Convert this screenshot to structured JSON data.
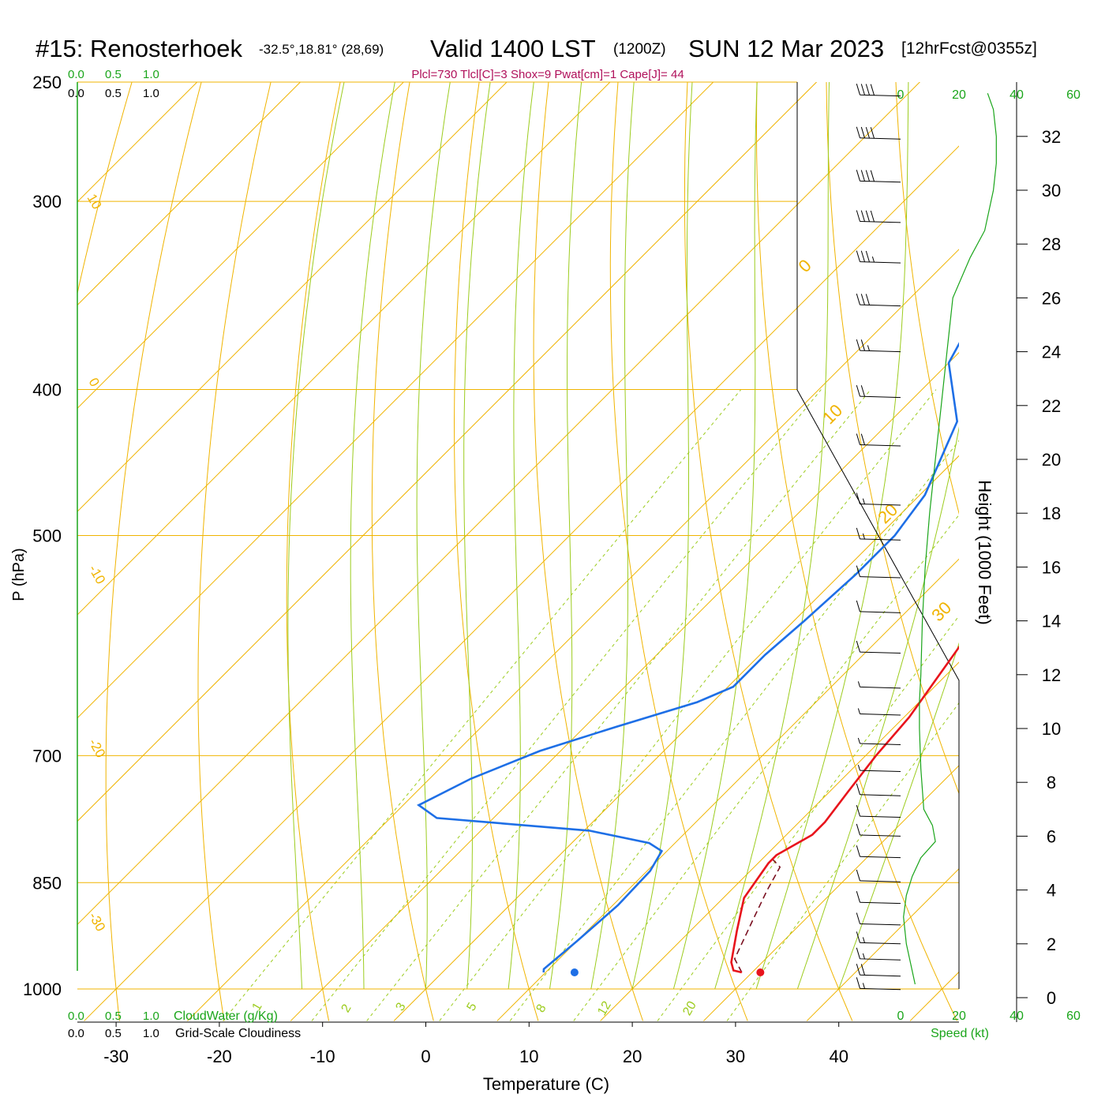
{
  "header": {
    "station": "#15: Renosterhoek",
    "coords": "-32.5°,18.81° (28,69)",
    "valid": "Valid 1400 LST",
    "zulu": "(1200Z)",
    "date": "SUN 12 Mar 2023",
    "forecast": "[12hrFcst@0355z]",
    "indices": "Plcl=730 Tlcl[C]=3 Shox=9 Pwat[cm]=1 Cape[J]= 44"
  },
  "colors": {
    "temperature": "#e8141c",
    "dewpoint": "#1e6fe6",
    "isotherm": "#f0b400",
    "dry_adiabat": "#f0b400",
    "moist_adiabat": "#9ccc1e",
    "mixing_ratio": "#9ccc1e",
    "scale_green": "#1aa51a",
    "indices": "#b0105a",
    "parcel": "#7a1020"
  },
  "cloud_scales": {
    "cloudwater_ticks": [
      "0.0",
      "0.5",
      "1.0"
    ],
    "cloudiness_ticks": [
      "0.0",
      "0.5",
      "1.0"
    ],
    "cloudwater_label": "CloudWater (g/Kg)",
    "cloudiness_label": "Grid-Scale Cloudiness"
  },
  "speed_axis": {
    "ticks": [
      "0",
      "20",
      "40",
      "60"
    ],
    "label": "Speed (kt)"
  },
  "chart_data": {
    "type": "line",
    "xlabel": "Temperature (C)",
    "ylabel": "P (hPa)",
    "y2label": "Height (1000 Feet)",
    "x_ticks": [
      -30,
      -20,
      -10,
      0,
      10,
      20,
      30,
      40
    ],
    "pressure_ticks": [
      250,
      300,
      400,
      500,
      700,
      850,
      1000
    ],
    "height_ticks": [
      0,
      2,
      4,
      6,
      8,
      10,
      12,
      14,
      16,
      18,
      20,
      22,
      24,
      26,
      28,
      30,
      32
    ],
    "isotherm_labels": [
      "10",
      "0",
      "-10",
      "-20",
      "-30"
    ],
    "dry_adiabat_labels": [
      "0",
      "10",
      "20",
      "30"
    ],
    "mixing_ratio_labels": [
      "1",
      "2",
      "3",
      "5",
      "8",
      "12",
      "20"
    ],
    "series": [
      {
        "name": "Temperature",
        "points": [
          [
            29.0,
            975
          ],
          [
            28.0,
            972
          ],
          [
            27.0,
            960
          ],
          [
            24.5,
            915
          ],
          [
            22.0,
            870
          ],
          [
            21.0,
            825
          ],
          [
            21.0,
            815
          ],
          [
            22.5,
            790
          ],
          [
            22.5,
            775
          ],
          [
            21.8,
            740
          ],
          [
            21.0,
            700
          ],
          [
            20.5,
            660
          ],
          [
            19.5,
            625
          ],
          [
            17.5,
            560
          ],
          [
            14.5,
            500
          ],
          [
            11.5,
            450
          ],
          [
            9.5,
            410
          ],
          [
            7.5,
            370
          ],
          [
            4.0,
            330
          ],
          [
            1.5,
            300
          ],
          [
            -1.5,
            268
          ]
        ]
      },
      {
        "name": "Dewpoint",
        "points": [
          [
            9.8,
            975
          ],
          [
            9.5,
            970
          ],
          [
            10.0,
            930
          ],
          [
            10.5,
            880
          ],
          [
            10.3,
            835
          ],
          [
            9.5,
            810
          ],
          [
            7.5,
            800
          ],
          [
            0.5,
            785
          ],
          [
            -15.5,
            770
          ],
          [
            -18.5,
            755
          ],
          [
            -16.0,
            725
          ],
          [
            -12.0,
            695
          ],
          [
            -7.0,
            670
          ],
          [
            -1.5,
            645
          ],
          [
            0.5,
            630
          ],
          [
            0.5,
            600
          ],
          [
            1.0,
            570
          ],
          [
            1.5,
            530
          ],
          [
            1.5,
            500
          ],
          [
            0.5,
            470
          ],
          [
            -3.5,
            420
          ],
          [
            -10.0,
            384
          ],
          [
            -13.5,
            340
          ],
          [
            -15.0,
            310
          ],
          [
            -14.5,
            290
          ],
          [
            -11.5,
            268
          ]
        ]
      },
      {
        "name": "Parcel",
        "points": [
          [
            29.0,
            975
          ],
          [
            27.0,
            955
          ],
          [
            25.0,
            900
          ],
          [
            23.5,
            860
          ],
          [
            22.5,
            830
          ],
          [
            21.0,
            820
          ]
        ]
      }
    ],
    "surface_temperature": 30.8,
    "surface_dewpoint": 12.8,
    "surface_pressure": 975,
    "winds": [
      {
        "height": 0.3,
        "speed": 18
      },
      {
        "height": 0.8,
        "speed": 20
      },
      {
        "height": 1.4,
        "speed": 19
      },
      {
        "height": 2.0,
        "speed": 18
      },
      {
        "height": 2.7,
        "speed": 14
      },
      {
        "height": 3.5,
        "speed": 12
      },
      {
        "height": 4.3,
        "speed": 10
      },
      {
        "height": 5.2,
        "speed": 11
      },
      {
        "height": 6.0,
        "speed": 12
      },
      {
        "height": 6.7,
        "speed": 14
      },
      {
        "height": 7.5,
        "speed": 12
      },
      {
        "height": 8.4,
        "speed": 9
      },
      {
        "height": 9.4,
        "speed": 8
      },
      {
        "height": 10.5,
        "speed": 9
      },
      {
        "height": 11.5,
        "speed": 8
      },
      {
        "height": 12.8,
        "speed": 10
      },
      {
        "height": 14.3,
        "speed": 12
      },
      {
        "height": 15.6,
        "speed": 14
      },
      {
        "height": 17.0,
        "speed": 16
      },
      {
        "height": 18.3,
        "speed": 18
      },
      {
        "height": 20.5,
        "speed": 22
      },
      {
        "height": 22.3,
        "speed": 24
      },
      {
        "height": 24.0,
        "speed": 27
      },
      {
        "height": 25.7,
        "speed": 33
      },
      {
        "height": 27.3,
        "speed": 38
      },
      {
        "height": 28.8,
        "speed": 40
      },
      {
        "height": 30.3,
        "speed": 42
      },
      {
        "height": 31.9,
        "speed": 44
      },
      {
        "height": 33.5,
        "speed": 40
      }
    ],
    "wind_speed_profile": [
      [
        5,
        0.5
      ],
      [
        4,
        1
      ],
      [
        2,
        2
      ],
      [
        1,
        3
      ],
      [
        2,
        3.8
      ],
      [
        4,
        4.5
      ],
      [
        7,
        5.2
      ],
      [
        12,
        5.8
      ],
      [
        11,
        6.4
      ],
      [
        8,
        7
      ],
      [
        7,
        8.5
      ],
      [
        6.5,
        10
      ],
      [
        6.5,
        11
      ],
      [
        7,
        12
      ],
      [
        7.5,
        14
      ],
      [
        8.5,
        16
      ],
      [
        10,
        18
      ],
      [
        12,
        20
      ],
      [
        14,
        22
      ],
      [
        16,
        24
      ],
      [
        18,
        26
      ],
      [
        24,
        27.5
      ],
      [
        29,
        28.5
      ],
      [
        32,
        30
      ],
      [
        33,
        31
      ],
      [
        33,
        32
      ],
      [
        32,
        33
      ],
      [
        30,
        33.6
      ]
    ]
  }
}
